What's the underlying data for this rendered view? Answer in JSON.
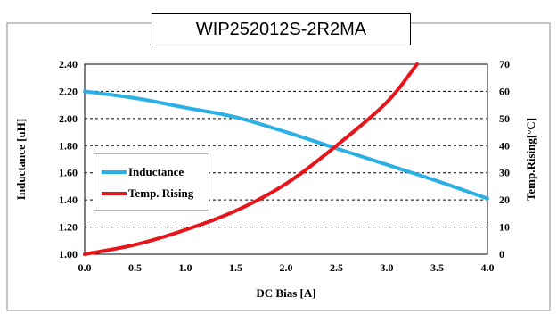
{
  "chart_data": {
    "type": "line",
    "title": "WIP252012S-2R2MA",
    "xlabel": "DC Bias [A]",
    "ylabel": "Inductance [uH]",
    "y2label": "Temp.Rising[°C]",
    "xlim": [
      0,
      4.0
    ],
    "ylim": [
      1.0,
      2.4
    ],
    "y2lim": [
      0,
      70
    ],
    "x_ticks": [
      "0.0",
      "0.5",
      "1.0",
      "1.5",
      "2.0",
      "2.5",
      "3.0",
      "3.5",
      "4.0"
    ],
    "y_ticks": [
      "1.00",
      "1.20",
      "1.40",
      "1.60",
      "1.80",
      "2.00",
      "2.20",
      "2.40"
    ],
    "y2_ticks": [
      "0",
      "10",
      "20",
      "30",
      "40",
      "50",
      "60",
      "70"
    ],
    "grid": "horizontal-dashed",
    "legend_position": "left-middle",
    "series": [
      {
        "name": "Inductance",
        "axis": "left",
        "color": "#2ab0e4",
        "x": [
          0,
          0.5,
          1.0,
          1.5,
          2.0,
          2.5,
          3.0,
          3.5,
          4.0
        ],
        "y": [
          2.2,
          2.15,
          2.08,
          2.01,
          1.9,
          1.78,
          1.66,
          1.54,
          1.41
        ]
      },
      {
        "name": "Temp. Rising",
        "axis": "right",
        "color": "#e8141a",
        "x": [
          0,
          0.5,
          1.0,
          1.5,
          2.0,
          2.5,
          3.0,
          3.3
        ],
        "y": [
          0,
          3.5,
          9,
          16,
          26,
          40,
          56,
          70
        ]
      }
    ]
  }
}
